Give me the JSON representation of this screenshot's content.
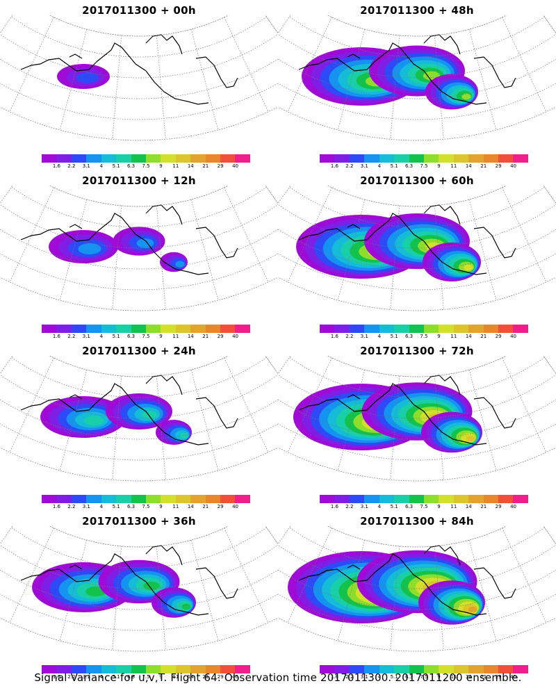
{
  "caption": "Signal Variance for u,v,T. Flight 64. Observation time 2017011300. 2017011200 ensemble.",
  "colorbar": {
    "colors": [
      "#a00ad6",
      "#7f1fe6",
      "#2d4af6",
      "#1493f0",
      "#14bcd8",
      "#18cfa8",
      "#13c24a",
      "#8fdd2b",
      "#d2e02b",
      "#dcc42c",
      "#e3a42d",
      "#e8862b",
      "#f0503a",
      "#f01e8a"
    ],
    "labels": [
      "1.6",
      "2.2",
      "3.1",
      "4",
      "5.1",
      "6.3",
      "7.5",
      "9",
      "11",
      "14",
      "21",
      "29",
      "40"
    ]
  },
  "panels": [
    {
      "title": "2017011300 + 00h",
      "intensity": 0.1
    },
    {
      "title": "2017011300 + 48h",
      "intensity": 0.7
    },
    {
      "title": "2017011300 + 12h",
      "intensity": 0.25
    },
    {
      "title": "2017011300 + 60h",
      "intensity": 0.8
    },
    {
      "title": "2017011300 + 24h",
      "intensity": 0.4
    },
    {
      "title": "2017011300 + 72h",
      "intensity": 0.85
    },
    {
      "title": "2017011300 + 36h",
      "intensity": 0.55
    },
    {
      "title": "2017011300 + 84h",
      "intensity": 0.95
    }
  ]
}
